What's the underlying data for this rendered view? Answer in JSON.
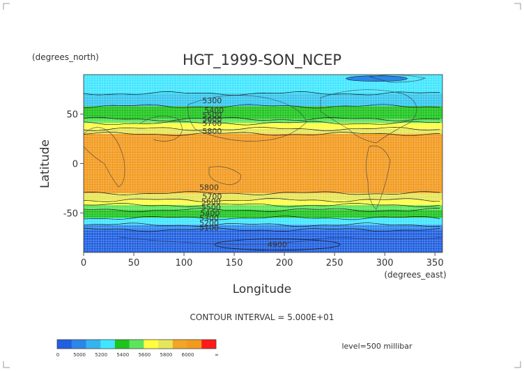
{
  "chart_data": {
    "type": "heatmap",
    "title": "HGT_1999-SON_NCEP",
    "xlabel": "Longitude",
    "ylabel": "Latitude",
    "x_units": "(degrees_east)",
    "y_units": "(degrees_north)",
    "xlim": [
      0,
      357.5
    ],
    "ylim": [
      -90,
      90
    ],
    "x_ticks": [
      0,
      50,
      100,
      150,
      200,
      250,
      300,
      350
    ],
    "y_ticks": [
      50,
      0,
      -50
    ],
    "grid": true,
    "contour_interval_text": "CONTOUR INTERVAL = 5.000E+01",
    "level_text": "level=500 millibar",
    "colorbar": {
      "colors": [
        "#1f5fe0",
        "#2b86ea",
        "#35b3f0",
        "#40e6ff",
        "#1ec41e",
        "#5de45d",
        "#ffff40",
        "#e6e65a",
        "#f2a527",
        "#f29a1e",
        "#ff1a1a"
      ],
      "tick_labels": [
        "0",
        "5000",
        "5200",
        "5400",
        "5600",
        "5800",
        "6000",
        "∞"
      ]
    },
    "bands": [
      {
        "lat_top": 90,
        "lat_bottom": 71,
        "color": "#40e6ff"
      },
      {
        "lat_top": 71,
        "lat_bottom": 58,
        "color": "#35c7ee"
      },
      {
        "lat_top": 58,
        "lat_bottom": 45,
        "color": "#1ec41e"
      },
      {
        "lat_top": 45,
        "lat_bottom": 41,
        "color": "#5de45d"
      },
      {
        "lat_top": 41,
        "lat_bottom": 35,
        "color": "#ffff40"
      },
      {
        "lat_top": 35,
        "lat_bottom": 30,
        "color": "#e6e65a"
      },
      {
        "lat_top": 30,
        "lat_bottom": -30,
        "color": "#f29a1e"
      },
      {
        "lat_top": -30,
        "lat_bottom": -37,
        "color": "#e6e65a"
      },
      {
        "lat_top": -37,
        "lat_bottom": -42,
        "color": "#ffff40"
      },
      {
        "lat_top": -42,
        "lat_bottom": -47,
        "color": "#5de45d"
      },
      {
        "lat_top": -47,
        "lat_bottom": -55,
        "color": "#1ec41e"
      },
      {
        "lat_top": -55,
        "lat_bottom": -62,
        "color": "#40e6ff"
      },
      {
        "lat_top": -62,
        "lat_bottom": -67,
        "color": "#2b86ea"
      },
      {
        "lat_top": -67,
        "lat_bottom": -90,
        "color": "#1f5fe0"
      }
    ],
    "contour_labels": [
      {
        "text": "5300",
        "lon": 128,
        "lat": 64
      },
      {
        "text": "5400",
        "lon": 130,
        "lat": 54
      },
      {
        "text": "5500",
        "lon": 128,
        "lat": 49
      },
      {
        "text": "5600",
        "lon": 128,
        "lat": 45
      },
      {
        "text": "5700",
        "lon": 128,
        "lat": 41
      },
      {
        "text": "5800",
        "lon": 128,
        "lat": 33
      },
      {
        "text": "5800",
        "lon": 125,
        "lat": -24
      },
      {
        "text": "5700",
        "lon": 128,
        "lat": -33
      },
      {
        "text": "5600",
        "lon": 127,
        "lat": -38
      },
      {
        "text": "5500",
        "lon": 127,
        "lat": -44
      },
      {
        "text": "5400",
        "lon": 126,
        "lat": -50
      },
      {
        "text": "5300",
        "lon": 125,
        "lat": -55
      },
      {
        "text": "5200",
        "lon": 125,
        "lat": -60
      },
      {
        "text": "5100",
        "lon": 125,
        "lat": -65
      },
      {
        "text": "4900",
        "lon": 193,
        "lat": -82
      }
    ]
  }
}
